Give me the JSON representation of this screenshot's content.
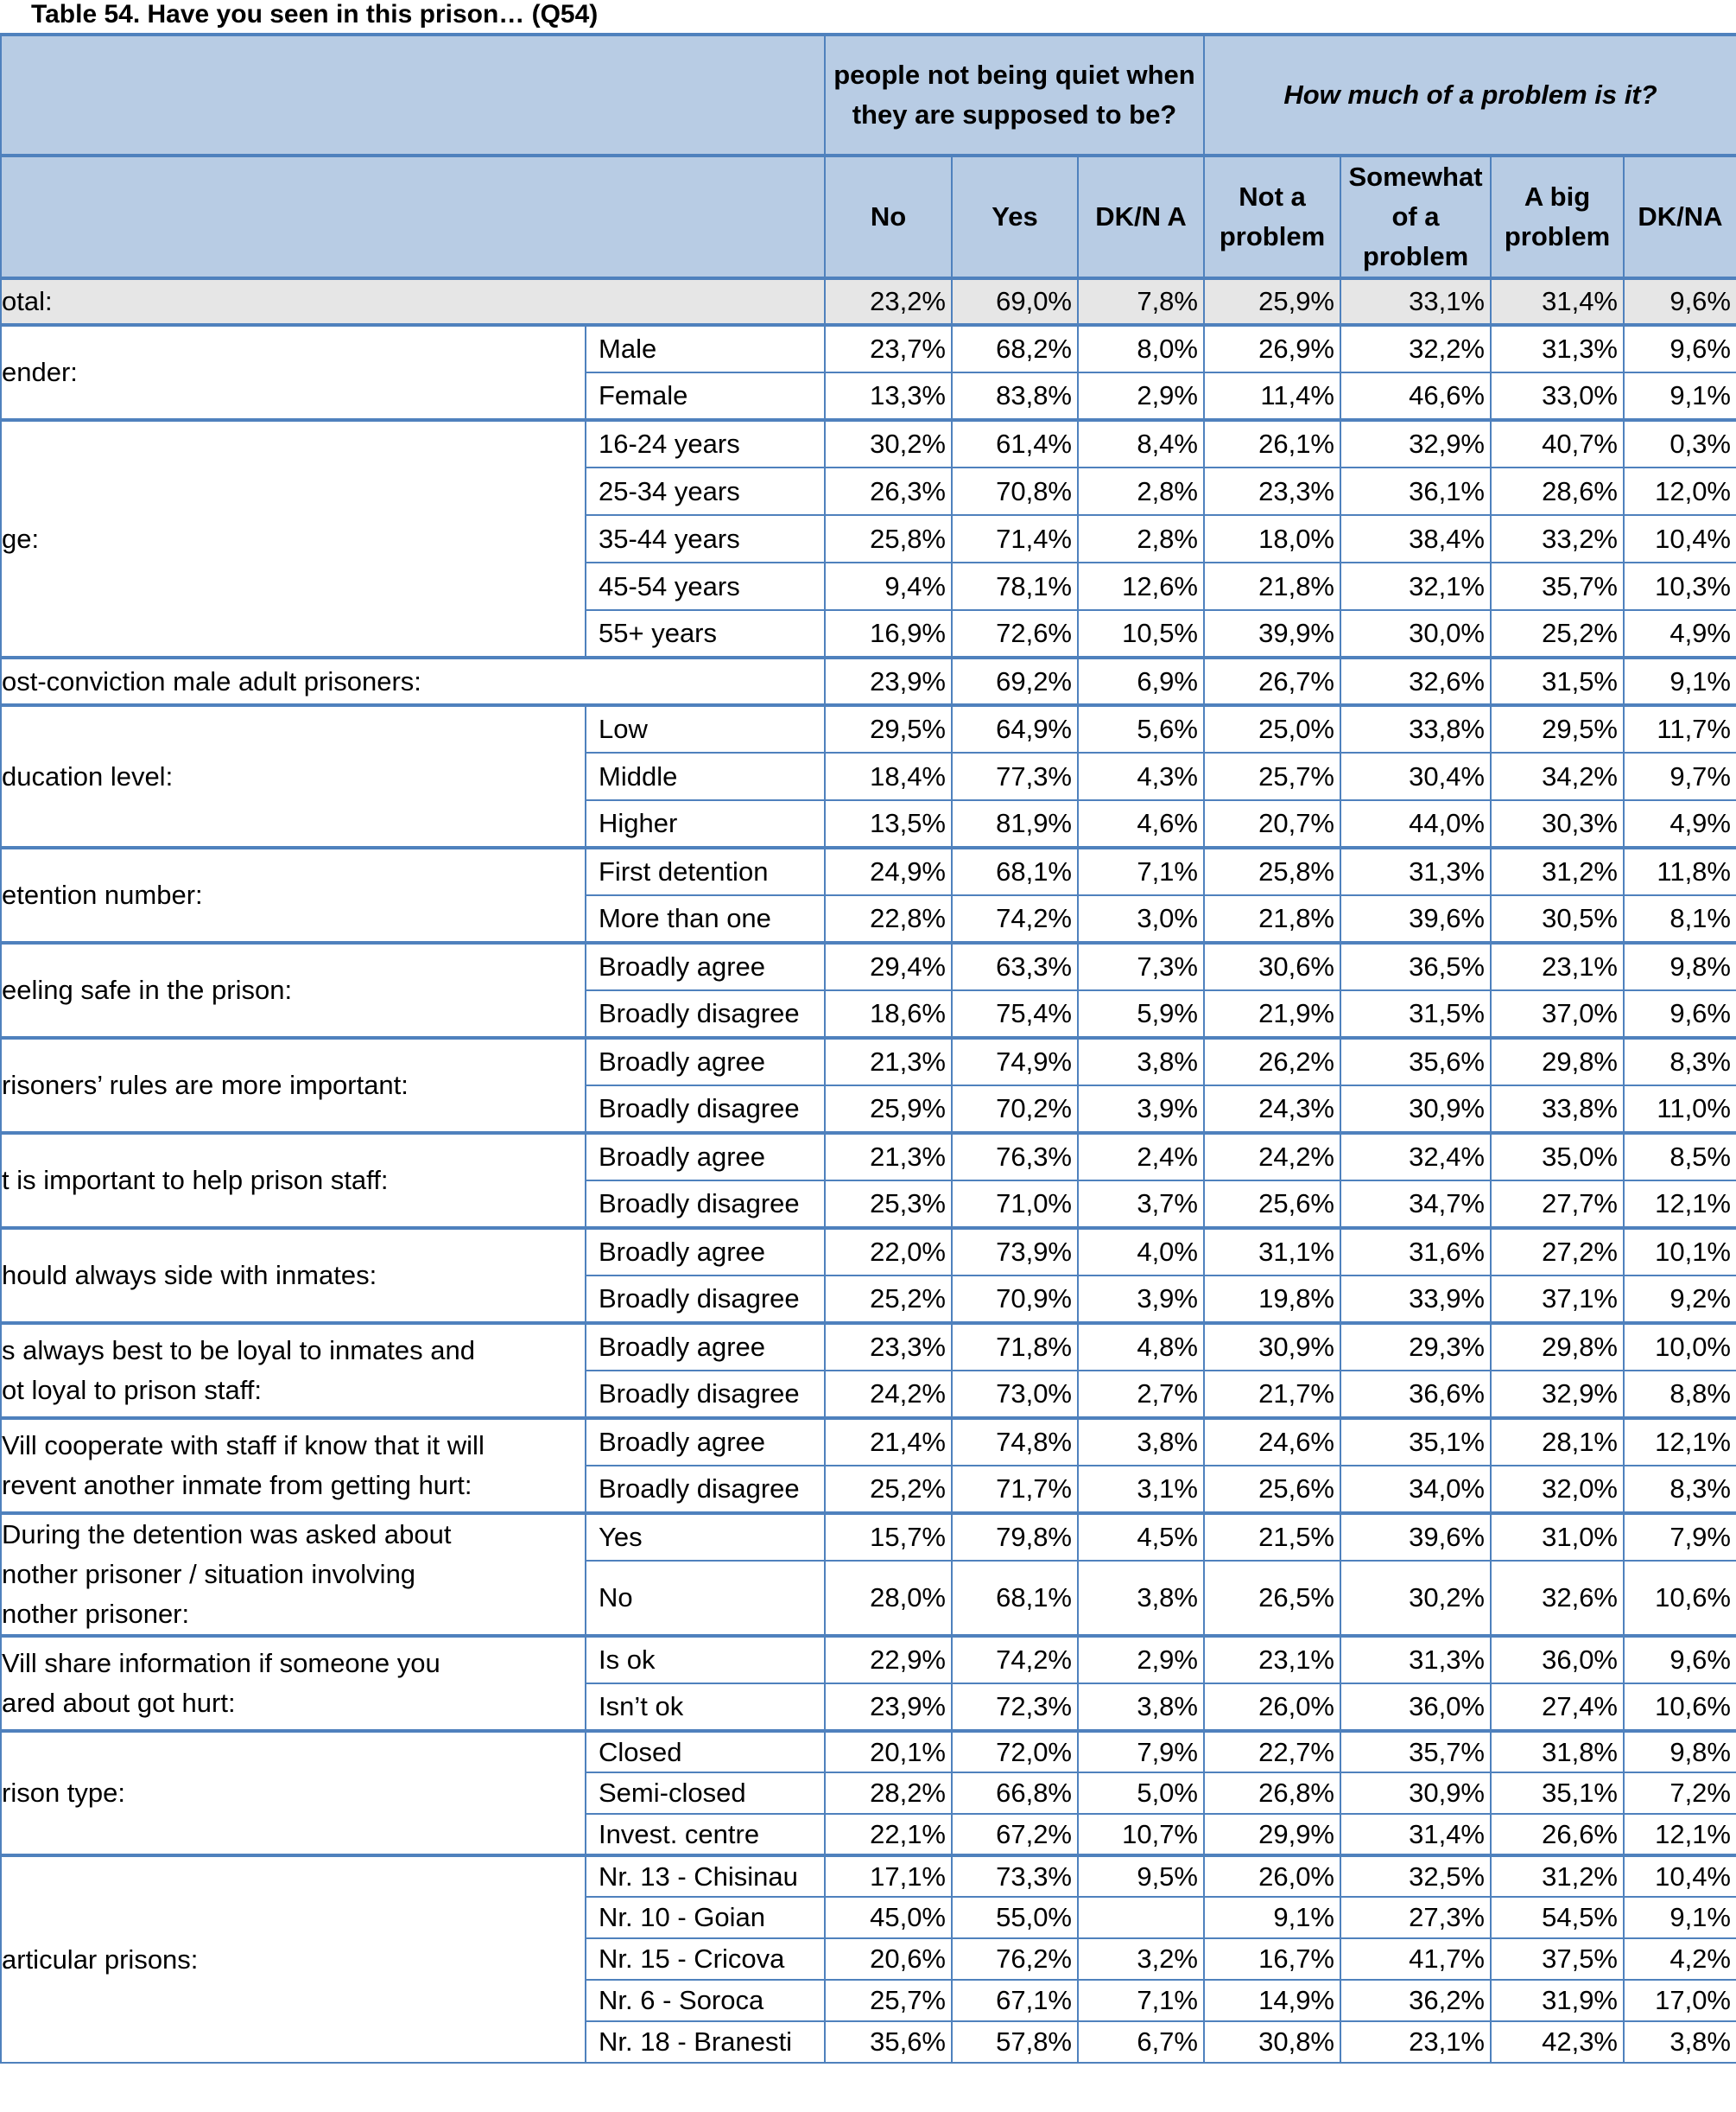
{
  "title": "Table 54. Have you seen in this prison… (Q54)",
  "header": {
    "group1": "people not being quiet when they are supposed to be?",
    "group2": "How much of a problem is it?",
    "columns": [
      "No",
      "Yes",
      "DK/N A",
      "Not a problem",
      "Somewhat of a problem",
      "A big problem",
      "DK/NA"
    ]
  },
  "total": {
    "label": "otal:",
    "values": [
      "23,2%",
      "69,0%",
      "7,8%",
      "25,9%",
      "33,1%",
      "31,4%",
      "9,6%"
    ]
  },
  "groups": [
    {
      "label": "ender:",
      "rows": [
        {
          "label": "Male",
          "values": [
            "23,7%",
            "68,2%",
            "8,0%",
            "26,9%",
            "32,2%",
            "31,3%",
            "9,6%"
          ]
        },
        {
          "label": "Female",
          "values": [
            "13,3%",
            "83,8%",
            "2,9%",
            "11,4%",
            "46,6%",
            "33,0%",
            "9,1%"
          ]
        }
      ]
    },
    {
      "label": "ge:",
      "rows": [
        {
          "label": "16-24 years",
          "values": [
            "30,2%",
            "61,4%",
            "8,4%",
            "26,1%",
            "32,9%",
            "40,7%",
            "0,3%"
          ]
        },
        {
          "label": "25-34 years",
          "values": [
            "26,3%",
            "70,8%",
            "2,8%",
            "23,3%",
            "36,1%",
            "28,6%",
            "12,0%"
          ]
        },
        {
          "label": "35-44 years",
          "values": [
            "25,8%",
            "71,4%",
            "2,8%",
            "18,0%",
            "38,4%",
            "33,2%",
            "10,4%"
          ]
        },
        {
          "label": "45-54 years",
          "values": [
            "9,4%",
            "78,1%",
            "12,6%",
            "21,8%",
            "32,1%",
            "35,7%",
            "10,3%"
          ]
        },
        {
          "label": "55+ years",
          "values": [
            "16,9%",
            "72,6%",
            "10,5%",
            "39,9%",
            "30,0%",
            "25,2%",
            "4,9%"
          ]
        }
      ]
    },
    {
      "label": "ost-conviction male adult prisoners:",
      "values": [
        "23,9%",
        "69,2%",
        "6,9%",
        "26,7%",
        "32,6%",
        "31,5%",
        "9,1%"
      ]
    },
    {
      "label": "ducation level:",
      "rows": [
        {
          "label": "Low",
          "values": [
            "29,5%",
            "64,9%",
            "5,6%",
            "25,0%",
            "33,8%",
            "29,5%",
            "11,7%"
          ]
        },
        {
          "label": "Middle",
          "values": [
            "18,4%",
            "77,3%",
            "4,3%",
            "25,7%",
            "30,4%",
            "34,2%",
            "9,7%"
          ]
        },
        {
          "label": "Higher",
          "values": [
            "13,5%",
            "81,9%",
            "4,6%",
            "20,7%",
            "44,0%",
            "30,3%",
            "4,9%"
          ]
        }
      ]
    },
    {
      "label": "etention number:",
      "rows": [
        {
          "label": "First detention",
          "values": [
            "24,9%",
            "68,1%",
            "7,1%",
            "25,8%",
            "31,3%",
            "31,2%",
            "11,8%"
          ]
        },
        {
          "label": "More than one",
          "values": [
            "22,8%",
            "74,2%",
            "3,0%",
            "21,8%",
            "39,6%",
            "30,5%",
            "8,1%"
          ]
        }
      ]
    },
    {
      "label": "eeling safe in the prison:",
      "rows": [
        {
          "label": "Broadly agree",
          "values": [
            "29,4%",
            "63,3%",
            "7,3%",
            "30,6%",
            "36,5%",
            "23,1%",
            "9,8%"
          ]
        },
        {
          "label": "Broadly disagree",
          "values": [
            "18,6%",
            "75,4%",
            "5,9%",
            "21,9%",
            "31,5%",
            "37,0%",
            "9,6%"
          ]
        }
      ]
    },
    {
      "label": "risoners’ rules are more important:",
      "rows": [
        {
          "label": "Broadly agree",
          "values": [
            "21,3%",
            "74,9%",
            "3,8%",
            "26,2%",
            "35,6%",
            "29,8%",
            "8,3%"
          ]
        },
        {
          "label": "Broadly disagree",
          "values": [
            "25,9%",
            "70,2%",
            "3,9%",
            "24,3%",
            "30,9%",
            "33,8%",
            "11,0%"
          ]
        }
      ]
    },
    {
      "label": "t is important to help prison staff:",
      "rows": [
        {
          "label": "Broadly agree",
          "values": [
            "21,3%",
            "76,3%",
            "2,4%",
            "24,2%",
            "32,4%",
            "35,0%",
            "8,5%"
          ]
        },
        {
          "label": "Broadly disagree",
          "values": [
            "25,3%",
            "71,0%",
            "3,7%",
            "25,6%",
            "34,7%",
            "27,7%",
            "12,1%"
          ]
        }
      ]
    },
    {
      "label": "hould always side with inmates:",
      "rows": [
        {
          "label": "Broadly agree",
          "values": [
            "22,0%",
            "73,9%",
            "4,0%",
            "31,1%",
            "31,6%",
            "27,2%",
            "10,1%"
          ]
        },
        {
          "label": "Broadly disagree",
          "values": [
            "25,2%",
            "70,9%",
            "3,9%",
            "19,8%",
            "33,9%",
            "37,1%",
            "9,2%"
          ]
        }
      ]
    },
    {
      "label": "s always best to be loyal to inmates and\not loyal to prison staff:",
      "rows": [
        {
          "label": "Broadly agree",
          "values": [
            "23,3%",
            "71,8%",
            "4,8%",
            "30,9%",
            "29,3%",
            "29,8%",
            "10,0%"
          ]
        },
        {
          "label": "Broadly disagree",
          "values": [
            "24,2%",
            "73,0%",
            "2,7%",
            "21,7%",
            "36,6%",
            "32,9%",
            "8,8%"
          ]
        }
      ]
    },
    {
      "label": "Vill cooperate with staff if know that it will\nrevent another inmate from getting hurt:",
      "rows": [
        {
          "label": "Broadly agree",
          "values": [
            "21,4%",
            "74,8%",
            "3,8%",
            "24,6%",
            "35,1%",
            "28,1%",
            "12,1%"
          ]
        },
        {
          "label": "Broadly disagree",
          "values": [
            "25,2%",
            "71,7%",
            "3,1%",
            "25,6%",
            "34,0%",
            "32,0%",
            "8,3%"
          ]
        }
      ]
    },
    {
      "label": "During the detention was asked about\nnother prisoner / situation involving\nnother prisoner:",
      "rows": [
        {
          "label": "Yes",
          "values": [
            "15,7%",
            "79,8%",
            "4,5%",
            "21,5%",
            "39,6%",
            "31,0%",
            "7,9%"
          ]
        },
        {
          "label": "No",
          "values": [
            "28,0%",
            "68,1%",
            "3,8%",
            "26,5%",
            "30,2%",
            "32,6%",
            "10,6%"
          ]
        }
      ]
    },
    {
      "label": "Vill share information if someone you\nared about got hurt:",
      "rows": [
        {
          "label": "Is ok",
          "values": [
            "22,9%",
            "74,2%",
            "2,9%",
            "23,1%",
            "31,3%",
            "36,0%",
            "9,6%"
          ]
        },
        {
          "label": "Isn’t ok",
          "values": [
            "23,9%",
            "72,3%",
            "3,8%",
            "26,0%",
            "36,0%",
            "27,4%",
            "10,6%"
          ]
        }
      ]
    },
    {
      "label": "rison type:",
      "rows": [
        {
          "label": "Closed",
          "values": [
            "20,1%",
            "72,0%",
            "7,9%",
            "22,7%",
            "35,7%",
            "31,8%",
            "9,8%"
          ]
        },
        {
          "label": "Semi-closed",
          "values": [
            "28,2%",
            "66,8%",
            "5,0%",
            "26,8%",
            "30,9%",
            "35,1%",
            "7,2%"
          ]
        },
        {
          "label": "Invest. centre",
          "values": [
            "22,1%",
            "67,2%",
            "10,7%",
            "29,9%",
            "31,4%",
            "26,6%",
            "12,1%"
          ]
        }
      ]
    },
    {
      "label": "articular prisons:",
      "rows": [
        {
          "label": "Nr. 13 - Chisinau",
          "values": [
            "17,1%",
            "73,3%",
            "9,5%",
            "26,0%",
            "32,5%",
            "31,2%",
            "10,4%"
          ]
        },
        {
          "label": "Nr. 10 - Goian",
          "values": [
            "45,0%",
            "55,0%",
            null,
            "9,1%",
            "27,3%",
            "54,5%",
            "9,1%"
          ]
        },
        {
          "label": "Nr. 15 - Cricova",
          "values": [
            "20,6%",
            "76,2%",
            "3,2%",
            "16,7%",
            "41,7%",
            "37,5%",
            "4,2%"
          ]
        },
        {
          "label": "Nr. 6 - Soroca",
          "values": [
            "25,7%",
            "67,1%",
            "7,1%",
            "14,9%",
            "36,2%",
            "31,9%",
            "17,0%"
          ]
        },
        {
          "label": "Nr. 18 - Branesti",
          "values": [
            "35,6%",
            "57,8%",
            "6,7%",
            "30,8%",
            "23,1%",
            "42,3%",
            "3,8%"
          ]
        }
      ]
    }
  ]
}
